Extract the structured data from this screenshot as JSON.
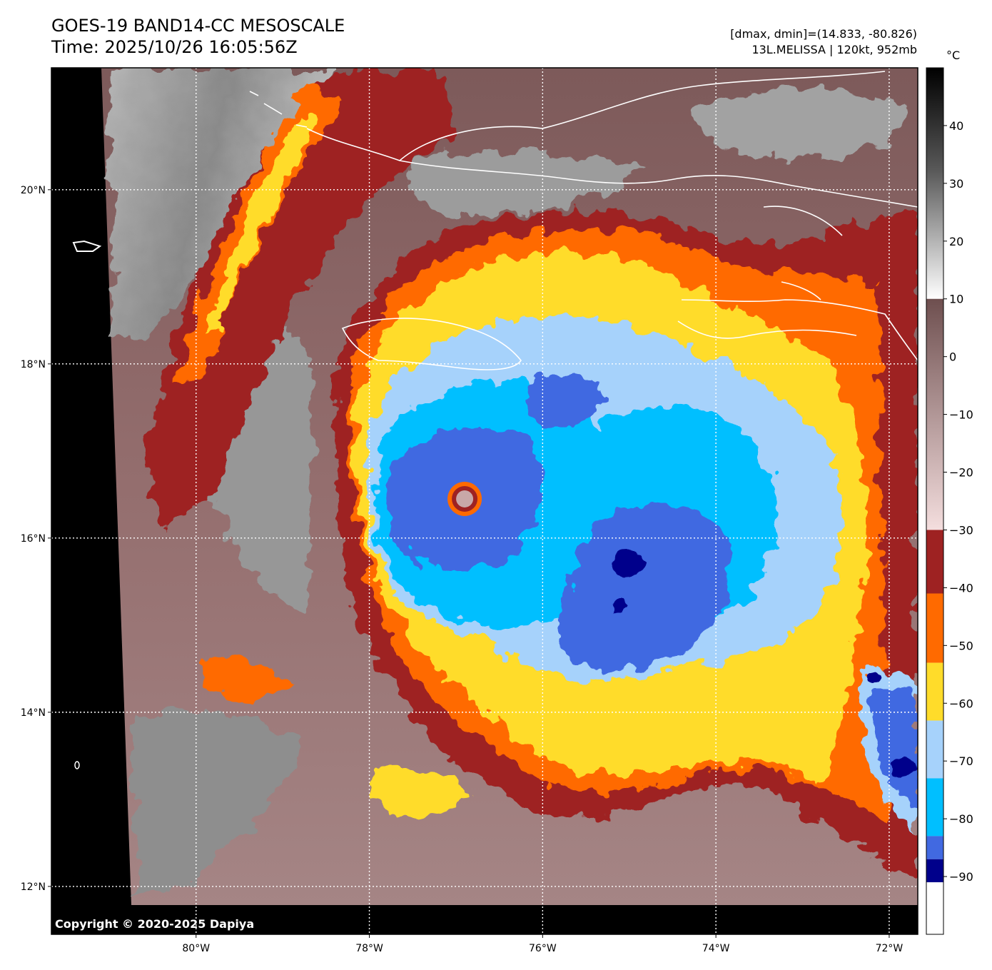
{
  "header": {
    "title_line1": "GOES-19 BAND14-CC MESOSCALE",
    "title_line2": "Time: 2025/10/26 16:05:56Z",
    "info_line1": "[dmax, dmin]=(14.833, -80.826)",
    "info_line2": "13L.MELISSA | 120kt, 952mb"
  },
  "copyright": "Copyright © 2020-2025 Dapiya",
  "axes": {
    "lon_labels": [
      "80°W",
      "78°W",
      "76°W",
      "74°W",
      "72°W"
    ],
    "lat_labels": [
      "20°N",
      "18°N",
      "16°N",
      "14°N",
      "12°N"
    ],
    "lon_values": [
      -80,
      -78,
      -76,
      -74,
      -72
    ],
    "lat_values": [
      20,
      18,
      16,
      14,
      12
    ],
    "lon_range": [
      -81.67,
      -71.67
    ],
    "lat_range": [
      11.45,
      21.4
    ],
    "grid": true
  },
  "colorbar": {
    "unit": "°C",
    "tick_labels": [
      "40",
      "30",
      "20",
      "10",
      "0",
      "−10",
      "−20",
      "−30",
      "−40",
      "−50",
      "−60",
      "−70",
      "−80",
      "−90"
    ],
    "tick_values": [
      40,
      30,
      20,
      10,
      0,
      -10,
      -20,
      -30,
      -40,
      -50,
      -60,
      -70,
      -80,
      -90
    ],
    "range": [
      -100,
      50
    ],
    "bands": [
      {
        "from": 10,
        "to": 50,
        "style": "gray"
      },
      {
        "from": -30,
        "to": 10,
        "style": "brown-pink"
      },
      {
        "from": -41,
        "to": -30,
        "color": "#9e2222"
      },
      {
        "from": -53,
        "to": -41,
        "color": "#ff6a00"
      },
      {
        "from": -63,
        "to": -53,
        "color": "#ffdc2a"
      },
      {
        "from": -73,
        "to": -63,
        "color": "#a6d2fb"
      },
      {
        "from": -83,
        "to": -73,
        "color": "#00bfff"
      },
      {
        "from": -87,
        "to": -83,
        "color": "#4169e1"
      },
      {
        "from": -91,
        "to": -87,
        "color": "#00008b"
      },
      {
        "from": -100,
        "to": -91,
        "color": "#ffffff"
      }
    ]
  },
  "storm": {
    "eye_lon": -76.9,
    "eye_lat": 16.45
  },
  "colors": {
    "space": "#000000",
    "clear_sky": "#8c8c8c",
    "warm_cloud": "#7a5656",
    "dark_red": "#9e2222",
    "orange": "#ff6a00",
    "yellow": "#ffdc2a",
    "light_blue": "#a6d2fb",
    "cyan": "#00bfff",
    "royal_blue": "#4169e1",
    "navy": "#00008b",
    "coast": "#ffffff"
  }
}
